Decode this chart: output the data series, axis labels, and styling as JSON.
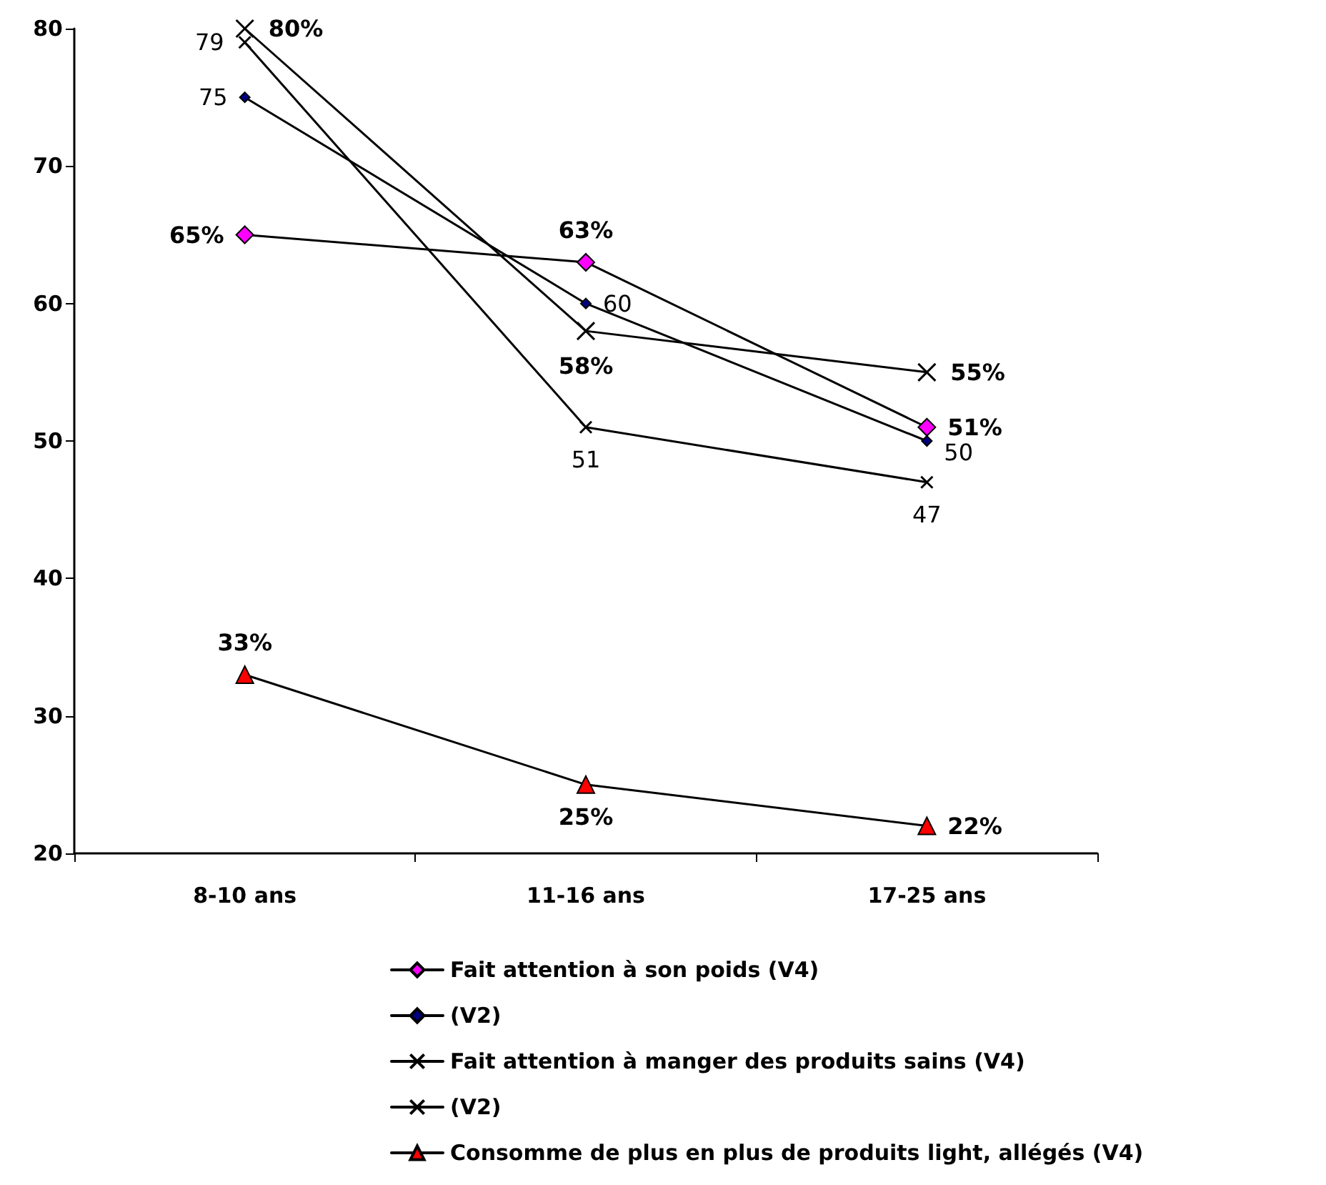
{
  "chart_data": {
    "type": "line",
    "categories": [
      "8-10 ans",
      "11-16 ans",
      "17-25 ans"
    ],
    "ylim": [
      20,
      80
    ],
    "yticks": [
      20,
      30,
      40,
      50,
      60,
      70,
      80
    ],
    "grid": false,
    "legend": "bottom",
    "line_style": "solid",
    "series": [
      {
        "name": "Fait attention à son poids (V4)",
        "color": "#ff00ff",
        "marker": "diamond",
        "values": [
          65,
          63,
          51
        ],
        "value_labels": [
          "65%",
          "63%",
          "51%"
        ]
      },
      {
        "name": "(V2)",
        "color": "#000080",
        "marker": "diamond",
        "values": [
          75,
          60,
          50
        ],
        "value_labels": [
          "75",
          "60",
          "50"
        ]
      },
      {
        "name": "Fait attention à manger des produits sains (V4)",
        "color": "#000000",
        "marker": "cross",
        "values": [
          80,
          58,
          55
        ],
        "value_labels": [
          "80%",
          "58%",
          "55%"
        ]
      },
      {
        "name": "(V2)",
        "color": "#000000",
        "marker": "cross",
        "values": [
          79,
          51,
          47
        ],
        "value_labels": [
          "79",
          "51",
          "47"
        ]
      },
      {
        "name": "Consomme de plus en plus de produits light, allégés (V4)",
        "color": "#ff0000",
        "marker": "triangle",
        "values": [
          33,
          25,
          22
        ],
        "value_labels": [
          "33%",
          "25%",
          "22%"
        ]
      }
    ]
  }
}
